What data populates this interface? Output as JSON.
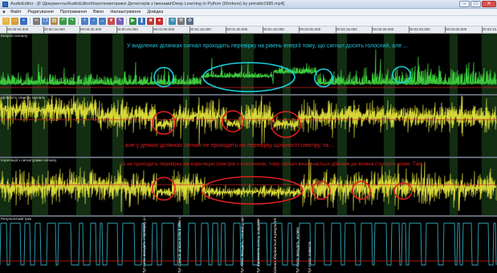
{
  "window": {
    "title": "AudioEditor - [F:\\Документы\\AudioEditor\\Короткометражні Детекторів з Іменами\\Deep Learning in Python (Workers) by petrakb1985.mp4]",
    "minimize": "–",
    "maximize": "□",
    "close": "✕"
  },
  "menu": {
    "items": [
      "Файл",
      "Редагування",
      "Програвання",
      "Вікно",
      "Налаштування",
      "Довідка"
    ]
  },
  "toolbar": {
    "icons": [
      {
        "name": "new-icon",
        "color": "#e8b33b",
        "glyph": "□"
      },
      {
        "name": "open-icon",
        "color": "#d99a2b",
        "glyph": "▭"
      },
      {
        "name": "save-icon",
        "color": "#3c6fc0",
        "glyph": "▪"
      },
      {
        "name": "sep"
      },
      {
        "name": "cut-icon",
        "color": "#7a7a7a",
        "glyph": "✂"
      },
      {
        "name": "copy-icon",
        "color": "#5a86c9",
        "glyph": "❐"
      },
      {
        "name": "paste-icon",
        "color": "#b08a4a",
        "glyph": "▤"
      },
      {
        "name": "undo-icon",
        "color": "#3a9a48",
        "glyph": "↶"
      },
      {
        "name": "redo-icon",
        "color": "#3a9a48",
        "glyph": "↷"
      },
      {
        "name": "sep"
      },
      {
        "name": "zoom-in-icon",
        "color": "#4c7fc7",
        "glyph": "+"
      },
      {
        "name": "zoom-out-icon",
        "color": "#4c7fc7",
        "glyph": "−"
      },
      {
        "name": "zoom-fit-icon",
        "color": "#4c7fc7",
        "glyph": "↔"
      },
      {
        "name": "marker-icon",
        "color": "#c94b4b",
        "glyph": "▼"
      },
      {
        "name": "edit-icon",
        "color": "#7b5bb3",
        "glyph": "✎"
      },
      {
        "name": "sep"
      },
      {
        "name": "play-icon",
        "color": "#2f8f3f",
        "glyph": "▶"
      },
      {
        "name": "pause-icon",
        "color": "#2f6fbf",
        "glyph": "❚"
      },
      {
        "name": "stop-icon",
        "color": "#b83c3c",
        "glyph": "■"
      },
      {
        "name": "record-icon",
        "color": "#cc2a2a",
        "glyph": "●"
      },
      {
        "name": "sep"
      },
      {
        "name": "loop-icon",
        "color": "#3a8fb0",
        "glyph": "⟲"
      },
      {
        "name": "tool-icon",
        "color": "#777",
        "glyph": "⚒"
      },
      {
        "name": "settings-icon",
        "color": "#5a6c85",
        "glyph": "⚙"
      }
    ]
  },
  "ruler": {
    "ticks": [
      "00:00:00.000",
      "00:00:15.000",
      "00:00:30.000",
      "00:00:45.000",
      "00:01:00.000",
      "00:01:15.000",
      "00:01:30.000",
      "00:01:45.000",
      "00:02:00.000",
      "00:02:15.000",
      "00:02:30.000",
      "00:02:45.000",
      "00:03:00.000",
      "00:03:15.000"
    ]
  },
  "panels": {
    "energy": {
      "label": "Енергія сигналу"
    },
    "spectrum": {
      "label": "Щільність спектру сигналу"
    },
    "correlation": {
      "label": "Кореляція з сигнатурами сигналу"
    },
    "result": {
      "label": "Результатний трек"
    }
  },
  "annotations": {
    "top": "У виділених ділянках сигнал проходить перевірку на рівень енергії тому, що сигнал досить голосний, але ...",
    "middle": "... але у деяких ділянках сигнал не проходить на перевірку щільності спектру, та ...",
    "lower": "та не проходить перевірку на кореляцію спектрів з еталонним, тому сигнал визначається дійсним де можна стиснути кроки. Так..."
  },
  "result_labels": [
    "Тут голос виходить і перевірку, а Олексія досить голосно",
    "Тут Олексія цілком потім в опис сигналу",
    "Тут голос виходить, Олексія у цьому записі з кумедним тоном",
    "Тут фрагменти голосу та музики",
    "Сигнал зберігається в результаті",
    "Тут голос виходить, музика",
    "Тут голос повністю"
  ],
  "colors": {
    "energy_wave": "#3cc83c",
    "yellow_wave": "#d8d838",
    "result_wave": "#2fa6b8",
    "circle_cyan": "#1ad0e0",
    "circle_red": "#e02020",
    "threshold": "#d02020",
    "annotation_cyan": "#19c4dc",
    "annotation_red": "#e21c1c"
  }
}
